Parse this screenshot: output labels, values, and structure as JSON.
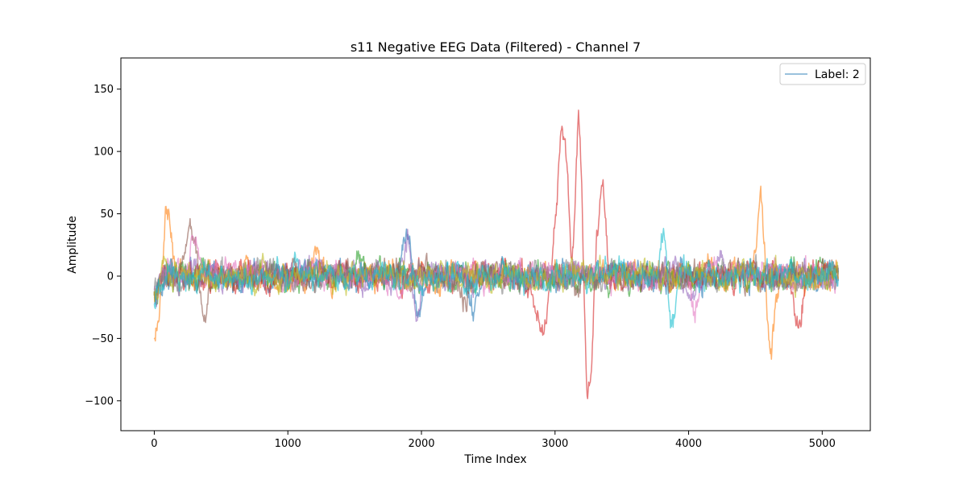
{
  "chart_data": {
    "type": "line",
    "title": "s11 Negative EEG Data (Filtered) - Channel 7",
    "xlabel": "Time Index",
    "ylabel": "Amplitude",
    "xlim": [
      -250,
      5360
    ],
    "ylim": [
      -124,
      175
    ],
    "xticks": [
      0,
      1000,
      2000,
      3000,
      4000,
      5000
    ],
    "yticks": [
      -100,
      -50,
      0,
      50,
      100,
      150
    ],
    "grid": false,
    "legend": {
      "position": "top-right",
      "entries": [
        "Label: 2"
      ]
    },
    "n_points": 5120,
    "background_noise_amplitude": 8,
    "series": [
      {
        "name": "Label: 2",
        "color": "#1f77b4",
        "events": [
          [
            1900,
            30,
            60
          ],
          [
            1970,
            -45,
            40
          ],
          [
            2380,
            -25,
            50
          ]
        ]
      },
      {
        "color": "#ff7f0e",
        "events": [
          [
            20,
            -35,
            80
          ],
          [
            95,
            70,
            45
          ],
          [
            1200,
            25,
            30
          ],
          [
            4540,
            62,
            45
          ],
          [
            4610,
            -65,
            40
          ]
        ]
      },
      {
        "color": "#2ca02c",
        "events": [
          [
            1530,
            20,
            30
          ]
        ]
      },
      {
        "color": "#d62728",
        "events": [
          [
            2900,
            -40,
            60
          ],
          [
            3060,
            120,
            60
          ],
          [
            3130,
            -45,
            40
          ],
          [
            3180,
            160,
            40
          ],
          [
            3240,
            -110,
            50
          ],
          [
            3330,
            45,
            40
          ],
          [
            3360,
            50,
            30
          ],
          [
            4820,
            -40,
            40
          ]
        ]
      },
      {
        "color": "#9467bd",
        "events": [
          [
            1910,
            35,
            40
          ],
          [
            1960,
            -45,
            40
          ],
          [
            4050,
            -25,
            40
          ],
          [
            4250,
            45,
            40
          ],
          [
            4270,
            -35,
            40
          ]
        ]
      },
      {
        "color": "#8c564b",
        "events": [
          [
            270,
            35,
            50
          ],
          [
            370,
            -30,
            40
          ],
          [
            2320,
            -20,
            40
          ]
        ]
      },
      {
        "color": "#e377c2",
        "events": [
          [
            300,
            25,
            40
          ],
          [
            4040,
            -30,
            40
          ]
        ]
      },
      {
        "color": "#7f7f7f",
        "events": []
      },
      {
        "color": "#bcbd22",
        "events": []
      },
      {
        "color": "#17becf",
        "events": [
          [
            3820,
            45,
            40
          ],
          [
            3870,
            -50,
            40
          ],
          [
            1060,
            18,
            30
          ]
        ]
      }
    ]
  }
}
